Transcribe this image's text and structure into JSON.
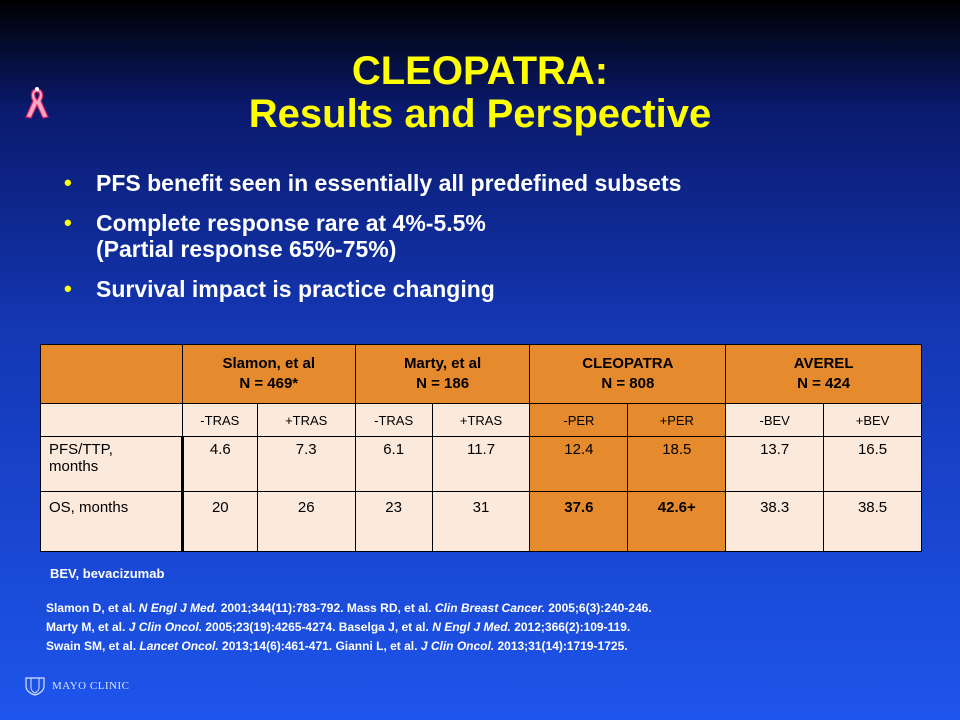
{
  "slide": {
    "title_line1": "CLEOPATRA:",
    "title_line2": "Results and Perspective",
    "bullets": [
      {
        "line1": "PFS benefit seen in essentially all predefined subsets",
        "line2": ""
      },
      {
        "line1": "Complete response rare at 4%-5.5%",
        "line2": "(Partial response 65%-75%)"
      },
      {
        "line1": "Survival impact is practice changing",
        "line2": ""
      }
    ]
  },
  "table": {
    "groups": [
      {
        "name": "Slamon, et al",
        "n": "N = 469*"
      },
      {
        "name": "Marty, et al",
        "n": "N = 186"
      },
      {
        "name": "CLEOPATRA",
        "n": "N = 808"
      },
      {
        "name": "AVEREL",
        "n": "N = 424"
      }
    ],
    "arms": [
      "-TRAS",
      "+TRAS",
      "-TRAS",
      "+TRAS",
      "-PER",
      "+PER",
      "-BEV",
      "+BEV"
    ],
    "rows": [
      {
        "label_line1": "PFS/TTP,",
        "label_line2": "months",
        "values": [
          "4.6",
          "7.3",
          "6.1",
          "11.7",
          "12.4",
          "18.5",
          "13.7",
          "16.5"
        ]
      },
      {
        "label_line1": "OS, months",
        "label_line2": "",
        "values": [
          "20",
          "26",
          "23",
          "31",
          "37.6",
          "42.6+",
          "38.3",
          "38.5"
        ]
      }
    ]
  },
  "footnote": "BEV, bevacizumab",
  "references": [
    [
      {
        "t": "Slamon D, et al. ",
        "i": false
      },
      {
        "t": "N Engl J Med.",
        "i": true
      },
      {
        "t": " 2001;344(11):783-792. Mass RD, et al. ",
        "i": false
      },
      {
        "t": "Clin Breast Cancer.",
        "i": true
      },
      {
        "t": " 2005;6(3):240-246.",
        "i": false
      }
    ],
    [
      {
        "t": "Marty M, et al. ",
        "i": false
      },
      {
        "t": "J Clin Oncol.",
        "i": true
      },
      {
        "t": " 2005;23(19):4265-4274. Baselga J, et al. ",
        "i": false
      },
      {
        "t": "N Engl J Med.",
        "i": true
      },
      {
        "t": " 2012;366(2):109-119.",
        "i": false
      }
    ],
    [
      {
        "t": "Swain SM, et al. ",
        "i": false
      },
      {
        "t": "Lancet Oncol.",
        "i": true
      },
      {
        "t": " 2013;14(6):461-471. Gianni L, et al. ",
        "i": false
      },
      {
        "t": "J Clin Oncol.",
        "i": true
      },
      {
        "t": " 2013;31(14):1719-1725.",
        "i": false
      }
    ]
  ],
  "logo": {
    "text": "MAYO CLINIC",
    "icon": "mayo-shield-icon"
  },
  "ribbon_icon": "awareness-ribbon-icon",
  "colors": {
    "title": "#ffff00",
    "table_header": "#e68a2e",
    "table_cell": "#fbe9dc"
  }
}
